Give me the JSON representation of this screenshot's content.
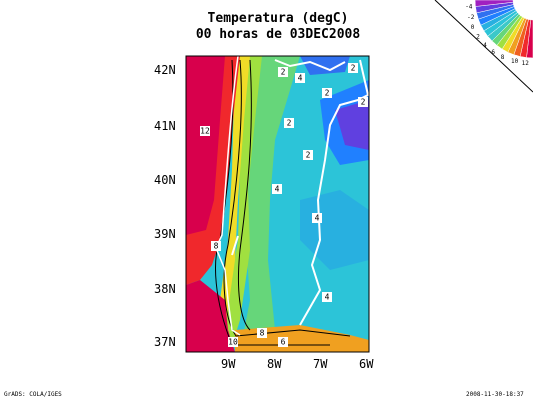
{
  "header": {
    "title": "Temperatura (degC)",
    "subtitle": "00 horas de 03DEC2008"
  },
  "map": {
    "lat_labels": [
      "42N",
      "41N",
      "40N",
      "39N",
      "38N",
      "37N"
    ],
    "lon_labels": [
      "9W",
      "8W",
      "7W",
      "6W"
    ],
    "contour_labels": [
      "12",
      "8",
      "10",
      "8",
      "6",
      "4",
      "4",
      "4",
      "2",
      "4",
      "2",
      "2",
      "2",
      "2",
      "2"
    ]
  },
  "colorbar": {
    "labels": [
      "12",
      "10",
      "8",
      "6",
      "4",
      "2",
      "0",
      "-2",
      "-4"
    ]
  },
  "footer": {
    "left": "GrADS: COLA/IGES",
    "right": "2008-11-30-18:37"
  }
}
